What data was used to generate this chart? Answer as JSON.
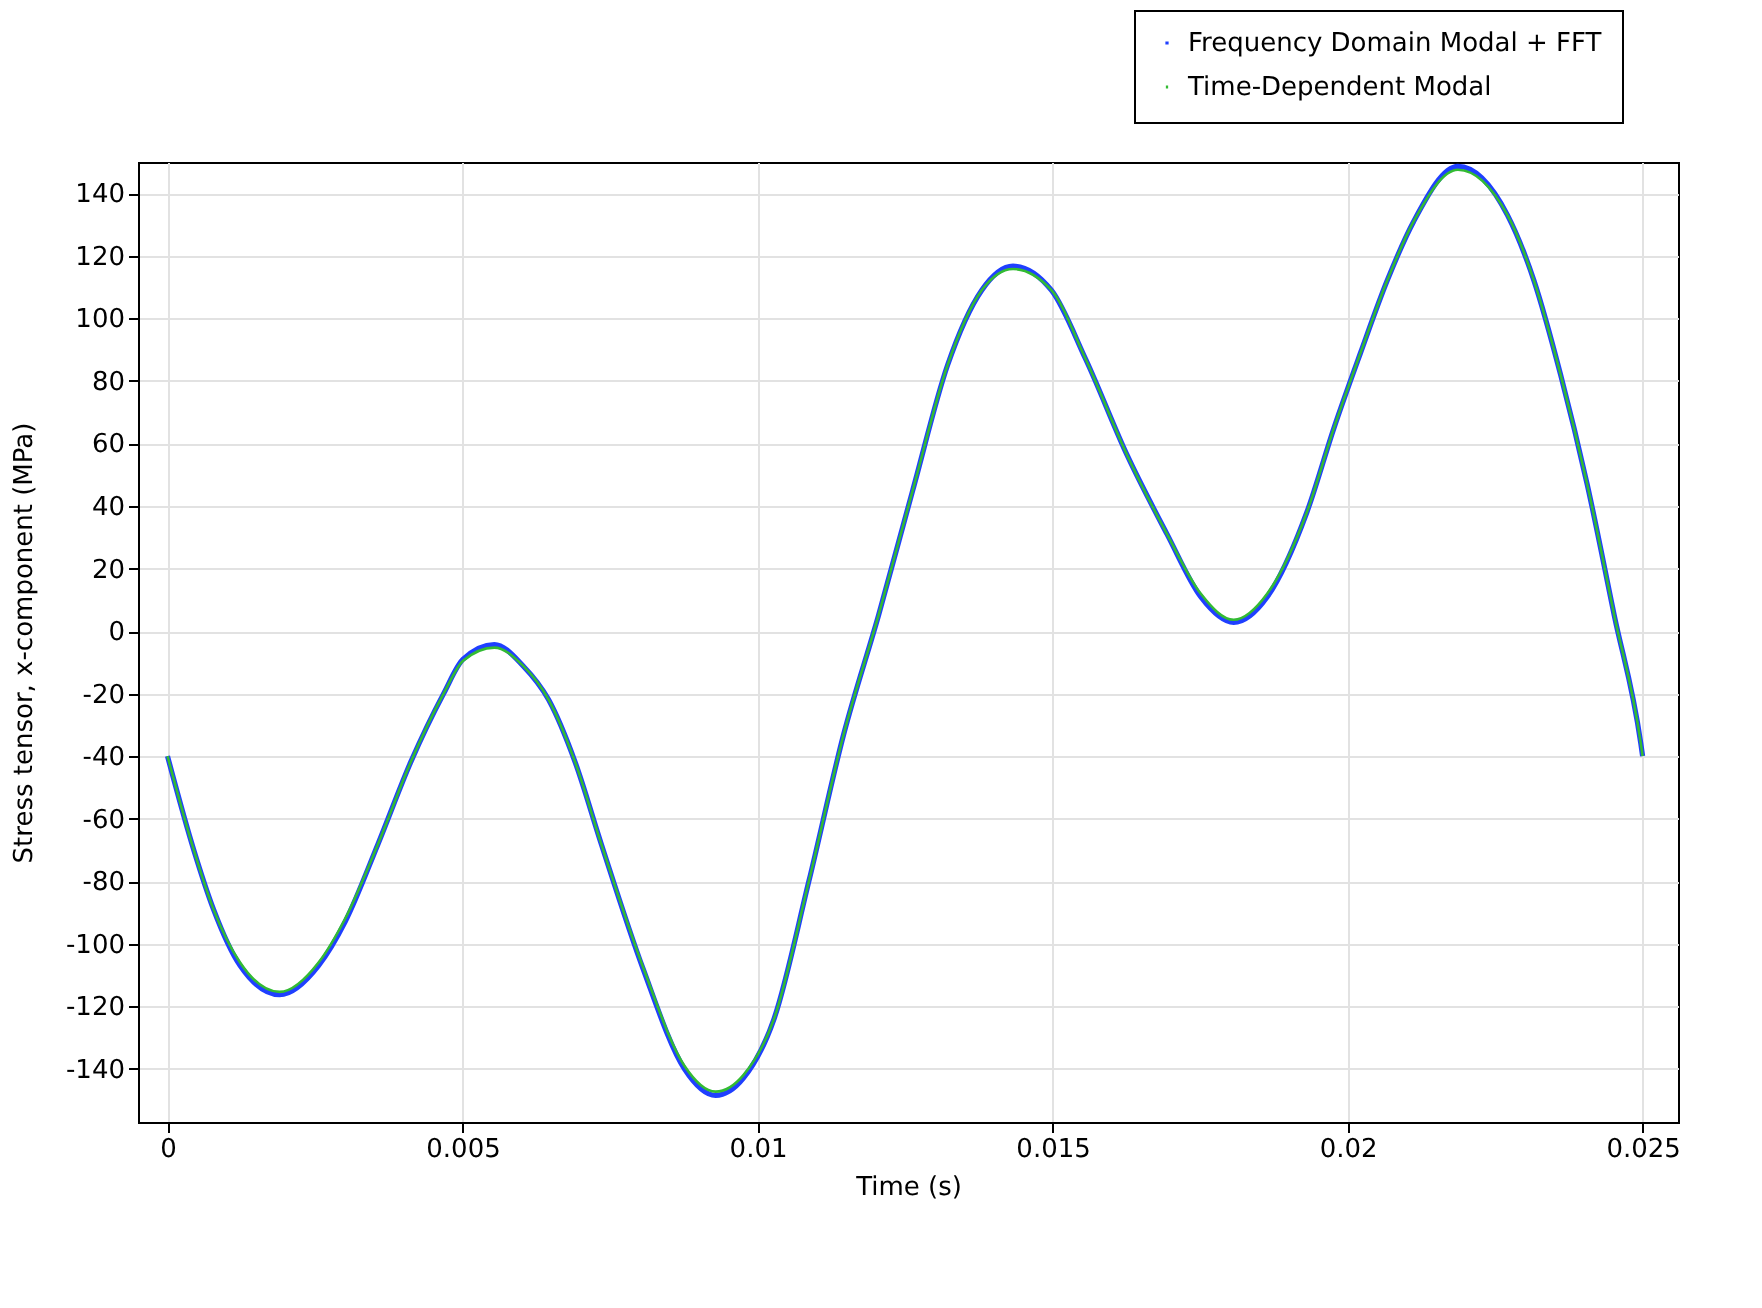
{
  "chart_data": {
    "type": "line",
    "xlabel": "Time (s)",
    "ylabel": "Stress tensor, x-component (MPa)",
    "x": [
      0,
      0.000445,
      0.00078,
      0.00123,
      0.0019,
      0.00256,
      0.00301,
      0.00357,
      0.00412,
      0.00468,
      0.00501,
      0.00554,
      0.00602,
      0.00646,
      0.00691,
      0.00735,
      0.00806,
      0.00876,
      0.00929,
      0.00976,
      0.01028,
      0.01087,
      0.01146,
      0.01205,
      0.01263,
      0.01322,
      0.0138,
      0.01433,
      0.01498,
      0.01556,
      0.01627,
      0.01694,
      0.01751,
      0.01807,
      0.01864,
      0.01931,
      0.01977,
      0.02022,
      0.02067,
      0.02112,
      0.02187,
      0.02271,
      0.02316,
      0.02361,
      0.02406,
      0.02452,
      0.02497,
      0.025
    ],
    "series": [
      {
        "name": "Frequency Domain Modal + FFT",
        "color": "#1f3fff",
        "values": [
          -40,
          -70,
          -89,
          -107,
          -116.3,
          -107,
          -93,
          -68,
          -42,
          -20,
          -9,
          -4.3,
          -11,
          -22,
          -42,
          -68,
          -108,
          -140,
          -148.5,
          -143,
          -124,
          -80,
          -33,
          5,
          45,
          85,
          109,
          116.7,
          109,
          87,
          56,
          31,
          11,
          2.8,
          11,
          38,
          65,
          89,
          112,
          131,
          148.6,
          133,
          112,
          82,
          47,
          5,
          -36,
          -40
        ]
      },
      {
        "name": "Time-Dependent Modal",
        "color": "#33bb33",
        "values": [
          -40,
          -70,
          -89,
          -106,
          -115.4,
          -106,
          -92,
          -68,
          -42,
          -20,
          -9.5,
          -5.3,
          -11,
          -22,
          -42,
          -68,
          -107.5,
          -139,
          -147.3,
          -142,
          -124,
          -80,
          -33,
          5,
          45,
          85,
          109,
          115.8,
          109,
          87,
          56,
          31,
          12,
          3.6,
          12,
          38,
          65,
          89,
          112,
          131,
          147.5,
          133,
          112,
          82,
          47,
          5,
          -36,
          -40
        ]
      }
    ],
    "xlim": [
      -0.0005,
      0.0256
    ],
    "xticks": [
      0,
      0.005,
      0.01,
      0.015,
      0.02,
      0.025
    ],
    "ylim": [
      -157,
      150
    ],
    "yticks": [
      -140,
      -120,
      -100,
      -80,
      -60,
      -40,
      -20,
      0,
      20,
      40,
      60,
      80,
      100,
      120,
      140
    ],
    "grid": true,
    "legend": "top right",
    "marker": "none",
    "line_style": "solid"
  }
}
